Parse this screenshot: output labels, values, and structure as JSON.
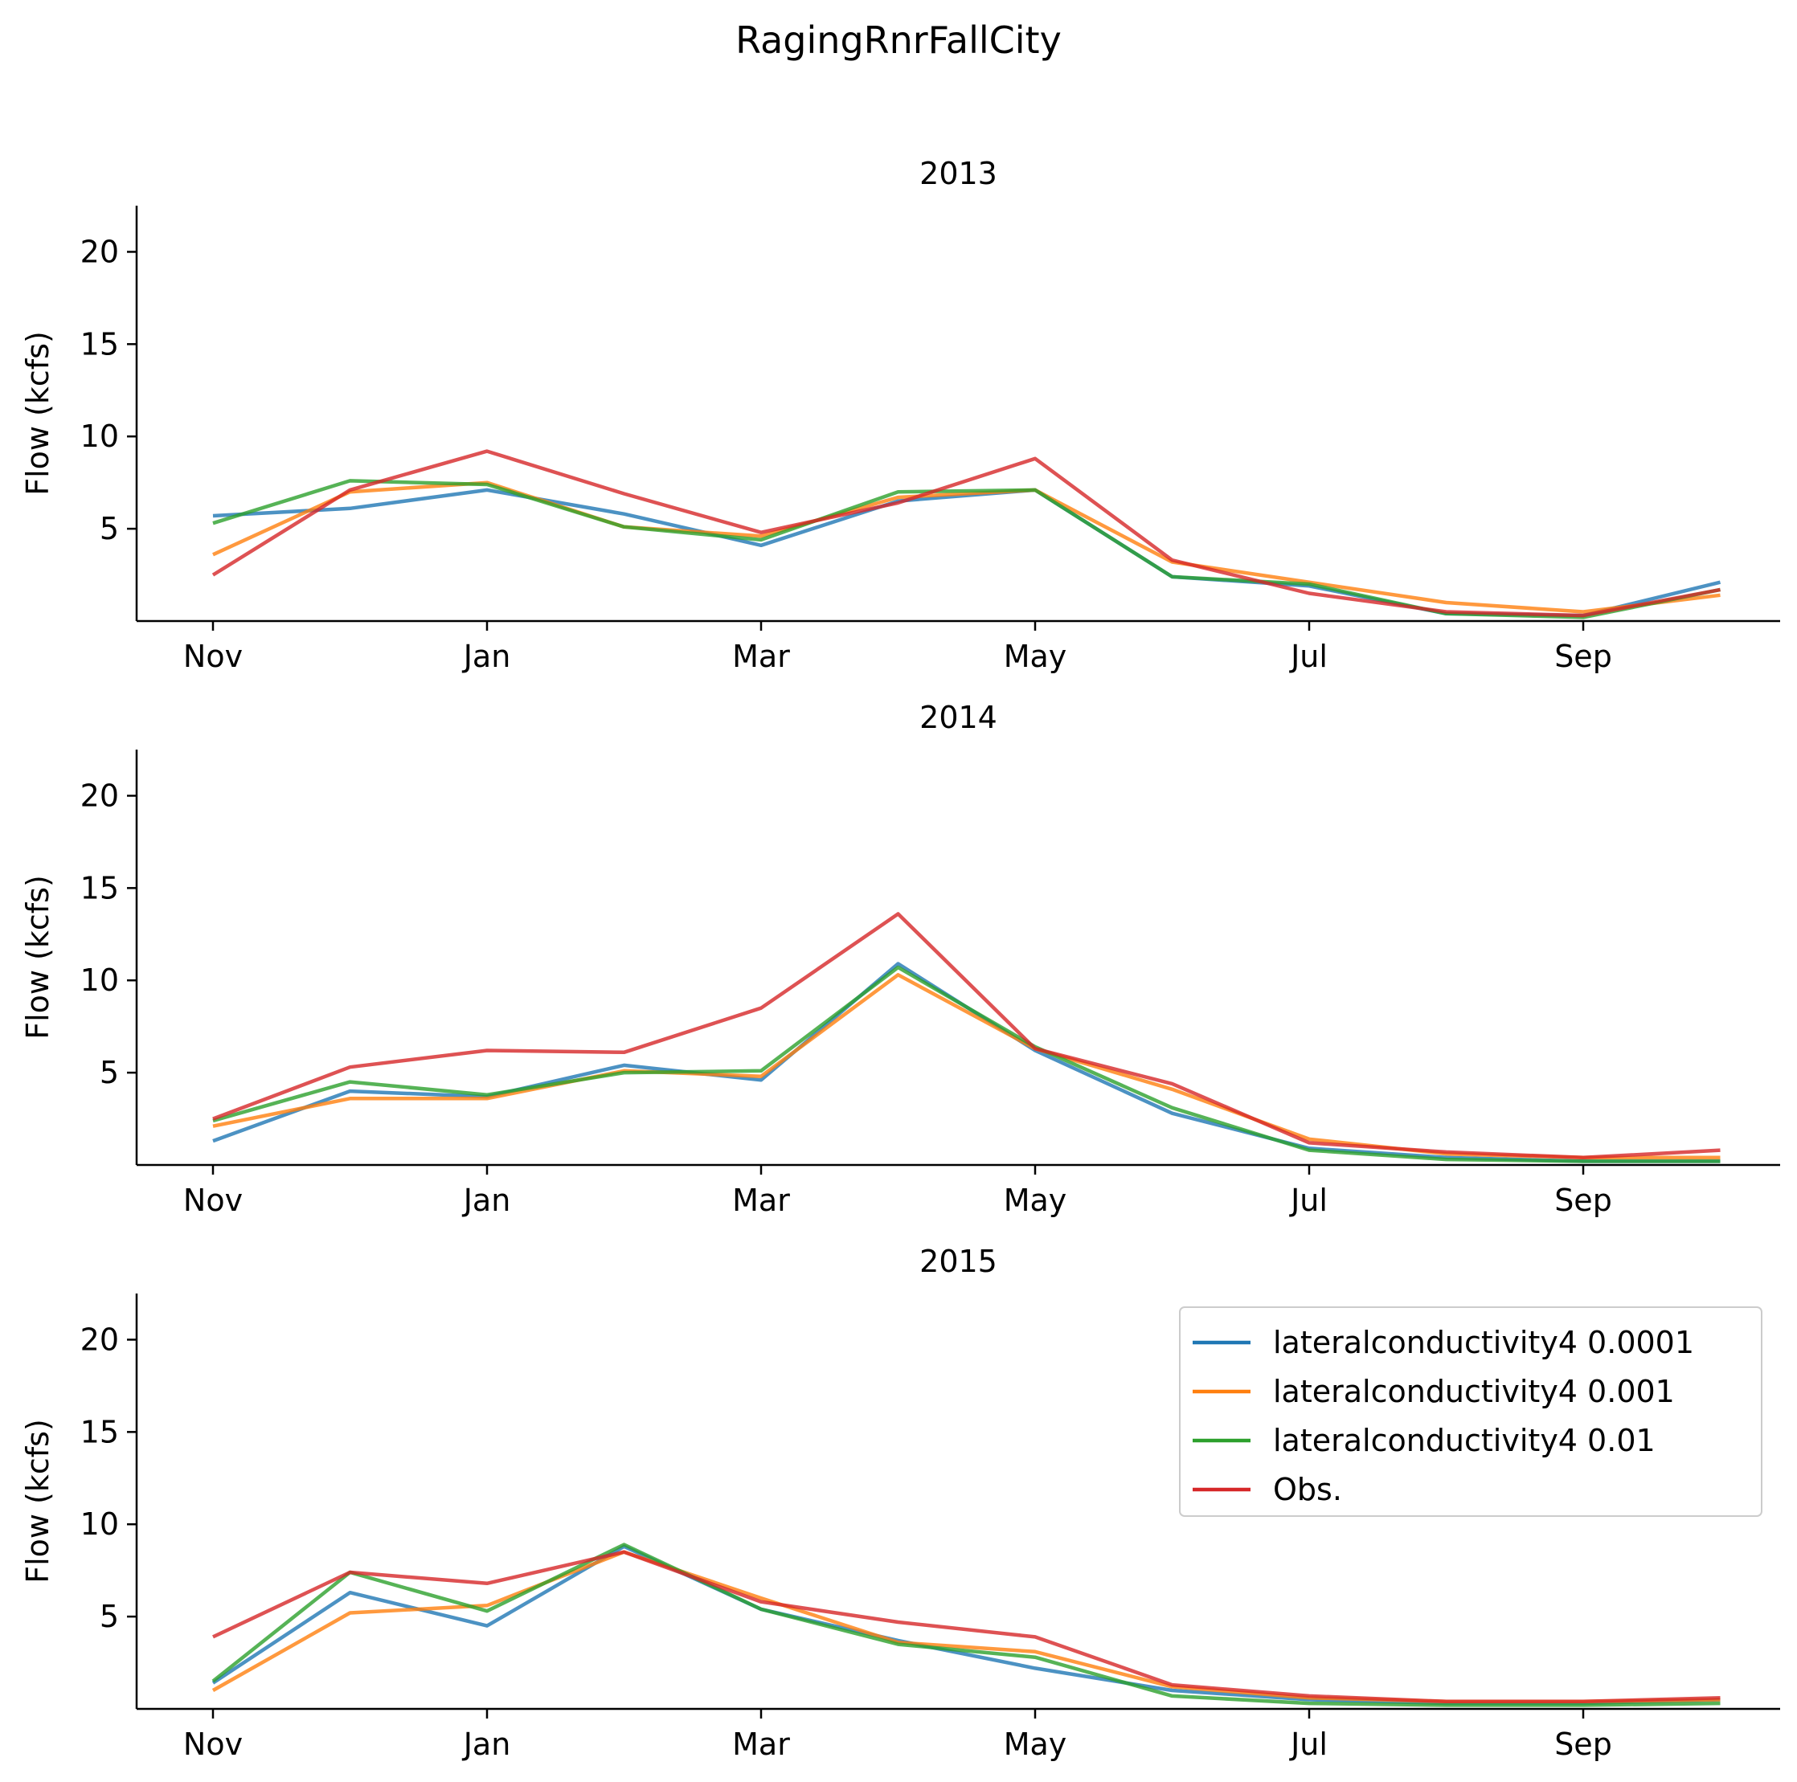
{
  "figure_title": "RagingRnrFallCity",
  "colors": {
    "lateralconductivity4 0.0001": "#1f77b4",
    "lateralconductivity4 0.001": "#ff7f0e",
    "lateralconductivity4 0.01": "#2ca02c",
    "Obs.": "#d62728"
  },
  "chart_data": [
    {
      "type": "line",
      "title": "2013",
      "xlabel": "",
      "ylabel": "Flow (kcfs)",
      "x_ticks": [
        "Nov",
        "Jan",
        "Mar",
        "May",
        "Jul",
        "Sep"
      ],
      "y_ticks": [
        5,
        10,
        15,
        20
      ],
      "ylim": [
        0,
        22.5
      ],
      "grid": false,
      "x": [
        "Nov",
        "Dec",
        "Jan",
        "Feb",
        "Mar",
        "Apr",
        "May",
        "Jun",
        "Jul",
        "Aug",
        "Sep",
        "Oct"
      ],
      "series": [
        {
          "name": "lateralconductivity4 0.0001",
          "values": [
            5.7,
            6.1,
            7.1,
            5.8,
            4.1,
            6.5,
            7.1,
            2.4,
            1.9,
            0.4,
            0.3,
            2.1
          ]
        },
        {
          "name": "lateralconductivity4 0.001",
          "values": [
            3.6,
            7.0,
            7.5,
            5.1,
            4.6,
            6.7,
            7.1,
            3.2,
            2.1,
            1.0,
            0.5,
            1.4
          ]
        },
        {
          "name": "lateralconductivity4 0.01",
          "values": [
            5.3,
            7.6,
            7.4,
            5.1,
            4.4,
            7.0,
            7.1,
            2.4,
            2.0,
            0.4,
            0.2,
            1.7
          ]
        },
        {
          "name": "Obs.",
          "values": [
            2.5,
            7.1,
            9.2,
            6.9,
            4.8,
            6.4,
            8.8,
            3.3,
            1.5,
            0.5,
            0.3,
            1.7
          ]
        }
      ]
    },
    {
      "type": "line",
      "title": "2014",
      "xlabel": "",
      "ylabel": "Flow (kcfs)",
      "x_ticks": [
        "Nov",
        "Jan",
        "Mar",
        "May",
        "Jul",
        "Sep"
      ],
      "y_ticks": [
        5,
        10,
        15,
        20
      ],
      "ylim": [
        0,
        22.5
      ],
      "grid": false,
      "x": [
        "Nov",
        "Dec",
        "Jan",
        "Feb",
        "Mar",
        "Apr",
        "May",
        "Jun",
        "Jul",
        "Aug",
        "Sep",
        "Oct"
      ],
      "series": [
        {
          "name": "lateralconductivity4 0.0001",
          "values": [
            1.3,
            4.0,
            3.7,
            5.4,
            4.6,
            10.9,
            6.2,
            2.8,
            0.9,
            0.4,
            0.2,
            0.2
          ]
        },
        {
          "name": "lateralconductivity4 0.001",
          "values": [
            2.1,
            3.6,
            3.6,
            5.1,
            4.8,
            10.3,
            6.3,
            4.1,
            1.4,
            0.6,
            0.4,
            0.4
          ]
        },
        {
          "name": "lateralconductivity4 0.01",
          "values": [
            2.4,
            4.5,
            3.8,
            5.0,
            5.1,
            10.7,
            6.4,
            3.1,
            0.8,
            0.3,
            0.2,
            0.2
          ]
        },
        {
          "name": "Obs.",
          "values": [
            2.5,
            5.3,
            6.2,
            6.1,
            8.5,
            13.6,
            6.3,
            4.4,
            1.2,
            0.7,
            0.4,
            0.8
          ]
        }
      ]
    },
    {
      "type": "line",
      "title": "2015",
      "xlabel": "",
      "ylabel": "Flow (kcfs)",
      "x_ticks": [
        "Nov",
        "Jan",
        "Mar",
        "May",
        "Jul",
        "Sep"
      ],
      "y_ticks": [
        5,
        10,
        15,
        20
      ],
      "ylim": [
        0,
        22.5
      ],
      "grid": false,
      "legend": "top-right",
      "x": [
        "Nov",
        "Dec",
        "Jan",
        "Feb",
        "Mar",
        "Apr",
        "May",
        "Jun",
        "Jul",
        "Aug",
        "Sep",
        "Oct"
      ],
      "series": [
        {
          "name": "lateralconductivity4 0.0001",
          "values": [
            1.4,
            6.3,
            4.5,
            8.8,
            5.4,
            3.7,
            2.2,
            1.0,
            0.5,
            0.3,
            0.3,
            0.5
          ]
        },
        {
          "name": "lateralconductivity4 0.001",
          "values": [
            1.0,
            5.2,
            5.6,
            8.5,
            6.0,
            3.6,
            3.1,
            1.2,
            0.6,
            0.4,
            0.4,
            0.5
          ]
        },
        {
          "name": "lateralconductivity4 0.01",
          "values": [
            1.5,
            7.4,
            5.3,
            8.9,
            5.4,
            3.5,
            2.8,
            0.7,
            0.3,
            0.2,
            0.2,
            0.3
          ]
        },
        {
          "name": "Obs.",
          "values": [
            3.9,
            7.4,
            6.8,
            8.5,
            5.8,
            4.7,
            3.9,
            1.3,
            0.7,
            0.4,
            0.4,
            0.6
          ]
        }
      ]
    }
  ]
}
